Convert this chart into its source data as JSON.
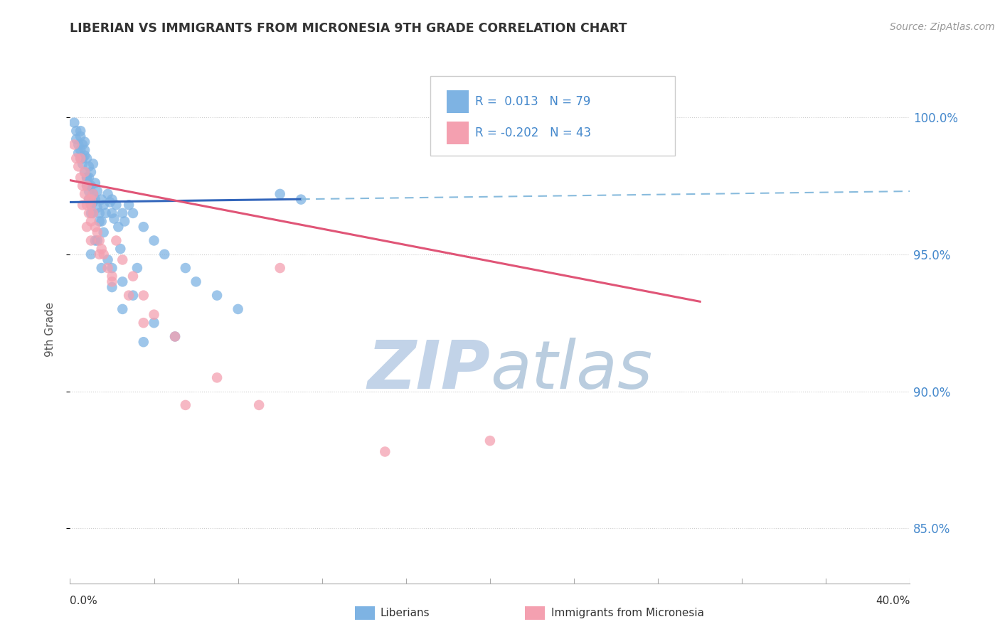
{
  "title": "LIBERIAN VS IMMIGRANTS FROM MICRONESIA 9TH GRADE CORRELATION CHART",
  "source": "Source: ZipAtlas.com",
  "ylabel": "9th Grade",
  "xlim": [
    0.0,
    40.0
  ],
  "ylim": [
    83.0,
    101.5
  ],
  "yticks": [
    85.0,
    90.0,
    95.0,
    100.0
  ],
  "ytick_labels": [
    "85.0%",
    "90.0%",
    "95.0%",
    "100.0%"
  ],
  "color_blue": "#7EB3E3",
  "color_pink": "#F4A0B0",
  "color_blue_line": "#3366BB",
  "color_pink_line": "#E05577",
  "color_blue_dashed": "#88BBDD",
  "blue_line_y0": 96.9,
  "blue_line_y40": 97.3,
  "blue_solid_end_x": 11.0,
  "pink_line_y0": 97.7,
  "pink_line_y40": 91.8,
  "blue_scatter_x": [
    0.2,
    0.3,
    0.3,
    0.4,
    0.4,
    0.5,
    0.5,
    0.5,
    0.6,
    0.6,
    0.7,
    0.7,
    0.7,
    0.8,
    0.8,
    0.8,
    0.9,
    0.9,
    0.9,
    0.9,
    1.0,
    1.0,
    1.0,
    1.0,
    1.1,
    1.1,
    1.1,
    1.2,
    1.2,
    1.3,
    1.3,
    1.4,
    1.5,
    1.5,
    1.6,
    1.7,
    1.8,
    1.9,
    2.0,
    2.0,
    2.1,
    2.2,
    2.3,
    2.5,
    2.6,
    2.8,
    3.0,
    3.5,
    4.0,
    4.5,
    5.5,
    6.0,
    7.0,
    8.0,
    10.0,
    11.0,
    1.0,
    1.2,
    1.8,
    2.4,
    3.2,
    0.6,
    0.8,
    1.4,
    1.6,
    2.0,
    2.5,
    3.0,
    4.0,
    5.0,
    0.5,
    0.7,
    0.9,
    1.1,
    1.3,
    1.5,
    2.0,
    2.5,
    3.5
  ],
  "blue_scatter_y": [
    99.8,
    99.5,
    99.2,
    99.0,
    98.7,
    99.3,
    98.8,
    98.5,
    99.0,
    98.3,
    98.6,
    98.0,
    99.1,
    97.8,
    98.5,
    97.5,
    97.3,
    98.2,
    97.0,
    97.8,
    96.8,
    97.5,
    98.0,
    96.5,
    97.2,
    96.9,
    98.3,
    97.0,
    97.6,
    96.7,
    97.3,
    96.5,
    96.2,
    97.0,
    96.8,
    96.5,
    97.2,
    96.9,
    96.5,
    97.0,
    96.3,
    96.8,
    96.0,
    96.5,
    96.2,
    96.8,
    96.5,
    96.0,
    95.5,
    95.0,
    94.5,
    94.0,
    93.5,
    93.0,
    97.2,
    97.0,
    95.0,
    95.5,
    94.8,
    95.2,
    94.5,
    98.5,
    97.8,
    96.2,
    95.8,
    94.5,
    94.0,
    93.5,
    92.5,
    92.0,
    99.5,
    98.8,
    97.5,
    96.5,
    95.5,
    94.5,
    93.8,
    93.0,
    91.8
  ],
  "pink_scatter_x": [
    0.2,
    0.3,
    0.4,
    0.5,
    0.5,
    0.6,
    0.7,
    0.7,
    0.8,
    0.8,
    0.9,
    0.9,
    1.0,
    1.0,
    1.0,
    1.1,
    1.1,
    1.2,
    1.3,
    1.4,
    1.5,
    1.6,
    1.8,
    2.0,
    2.2,
    2.5,
    3.0,
    3.5,
    4.0,
    5.0,
    7.0,
    9.0,
    10.0,
    15.0,
    20.0,
    0.6,
    0.8,
    1.0,
    1.4,
    2.0,
    2.8,
    3.5,
    5.5
  ],
  "pink_scatter_y": [
    99.0,
    98.5,
    98.2,
    97.8,
    98.5,
    97.5,
    97.2,
    98.0,
    96.8,
    97.5,
    97.0,
    96.5,
    96.2,
    97.0,
    96.8,
    96.5,
    97.2,
    96.0,
    95.8,
    95.5,
    95.2,
    95.0,
    94.5,
    94.0,
    95.5,
    94.8,
    94.2,
    93.5,
    92.8,
    92.0,
    90.5,
    89.5,
    94.5,
    87.8,
    88.2,
    96.8,
    96.0,
    95.5,
    95.0,
    94.2,
    93.5,
    92.5,
    89.5
  ]
}
